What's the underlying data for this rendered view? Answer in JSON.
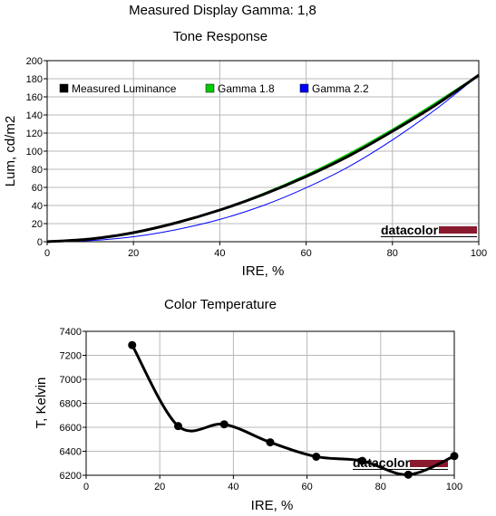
{
  "page": {
    "title": "Measured Display Gamma: 1,8"
  },
  "chart_data": [
    {
      "type": "line",
      "title": "Tone Response",
      "xlabel": "IRE, %",
      "ylabel": "Lum, cd/m2",
      "xlim": [
        0,
        100
      ],
      "ylim": [
        0,
        200
      ],
      "xticks": [
        0,
        20,
        40,
        60,
        80,
        100
      ],
      "yticks": [
        0,
        20,
        40,
        60,
        80,
        100,
        120,
        140,
        160,
        180,
        200
      ],
      "grid": true,
      "legend": "top-left",
      "series": [
        {
          "name": "Measured Luminance",
          "color": "#000000",
          "x": [
            0,
            10,
            20,
            30,
            40,
            50,
            60,
            70,
            80,
            90,
            100
          ],
          "y": [
            0,
            3,
            10,
            21,
            35,
            52,
            72,
            95,
            122,
            151,
            184
          ]
        },
        {
          "name": "Gamma 1.8",
          "color": "#00cc00",
          "x": [
            0,
            10,
            20,
            30,
            40,
            50,
            60,
            70,
            80,
            90,
            100
          ],
          "y": [
            0,
            2.9,
            10.1,
            21.0,
            35.1,
            52.8,
            73.5,
            97.3,
            123.9,
            153.3,
            184
          ]
        },
        {
          "name": "Gamma 2.2",
          "color": "#0000ff",
          "x": [
            0,
            10,
            20,
            30,
            40,
            50,
            60,
            70,
            80,
            90,
            100
          ],
          "y": [
            0,
            1.2,
            5.5,
            13.4,
            24.6,
            39.9,
            59.6,
            83.2,
            112.4,
            146.1,
            184
          ]
        }
      ],
      "logo": "datacolor"
    },
    {
      "type": "line",
      "title": "Color Temperature",
      "xlabel": "IRE, %",
      "ylabel": "T, Kelvin",
      "xlim": [
        0,
        100
      ],
      "ylim": [
        6200,
        7400
      ],
      "xticks": [
        0,
        20,
        40,
        60,
        80,
        100
      ],
      "yticks": [
        6200,
        6400,
        6600,
        6800,
        7000,
        7200,
        7400
      ],
      "grid": true,
      "series": [
        {
          "color": "#000000",
          "x": [
            12.5,
            25,
            37.5,
            50,
            62.5,
            75,
            87.5,
            100
          ],
          "y": [
            7285,
            6610,
            6625,
            6475,
            6355,
            6320,
            6205,
            6360
          ]
        }
      ],
      "logo": "datacolor"
    }
  ]
}
